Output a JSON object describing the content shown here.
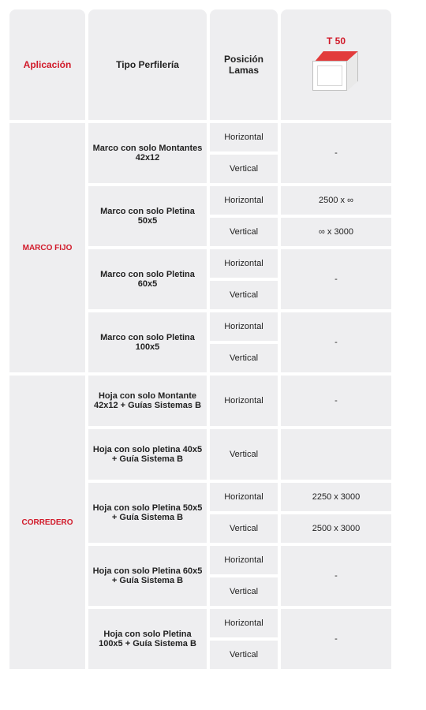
{
  "colors": {
    "cell_bg": "#eeeef0",
    "accent": "#d11a2a",
    "text": "#222222",
    "cube_red": "#e23b3b"
  },
  "headers": {
    "aplicacion": "Aplicación",
    "tipo": "Tipo Perfilería",
    "posicion": "Posición Lamas",
    "producto": "T 50"
  },
  "groups": [
    {
      "aplicacion": "MARCO FIJO",
      "rows": [
        {
          "tipo": "Marco con solo Montantes  42x12",
          "pos": [
            "Horizontal",
            "Vertical"
          ],
          "dim": [
            "-"
          ]
        },
        {
          "tipo": "Marco con solo Pletina 50x5",
          "pos": [
            "Horizontal",
            "Vertical"
          ],
          "dim": [
            "2500 x ∞",
            "∞ x 3000"
          ]
        },
        {
          "tipo": "Marco con solo Pletina 60x5",
          "pos": [
            "Horizontal",
            "Vertical"
          ],
          "dim": [
            "-"
          ]
        },
        {
          "tipo": "Marco con solo Pletina 100x5",
          "pos": [
            "Horizontal",
            "Vertical"
          ],
          "dim": [
            "-"
          ]
        }
      ]
    },
    {
      "aplicacion": "CORREDERO",
      "rows": [
        {
          "tipo": "Hoja con solo Montante 42x12 + Guías Sistemas B",
          "pos": [
            "Horizontal"
          ],
          "dim": [
            "-"
          ],
          "tall": true
        },
        {
          "tipo": "Hoja con solo pletina 40x5 + Guía Sistema B",
          "pos": [
            "Vertical"
          ],
          "dim": [
            ""
          ],
          "tall": true
        },
        {
          "tipo": "Hoja con solo Pletina 50x5 + Guía Sistema B",
          "pos": [
            "Horizontal",
            "Vertical"
          ],
          "dim": [
            "2250 x 3000",
            "2500 x 3000"
          ]
        },
        {
          "tipo": "Hoja con solo Pletina 60x5 + Guía Sistema B",
          "pos": [
            "Horizontal",
            "Vertical"
          ],
          "dim": [
            "-"
          ]
        },
        {
          "tipo": "Hoja con solo Pletina 100x5 + Guía Sistema B",
          "pos": [
            "Horizontal",
            "Vertical"
          ],
          "dim": [
            "-"
          ]
        }
      ]
    }
  ]
}
